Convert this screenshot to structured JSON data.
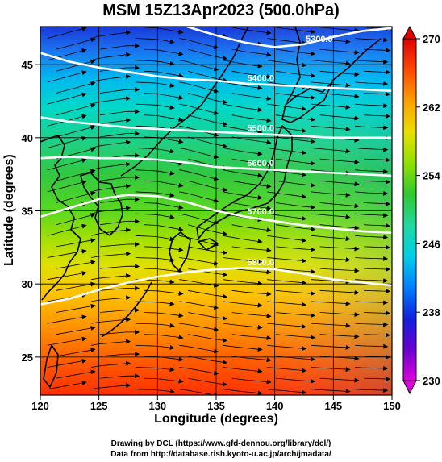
{
  "title": "MSM 15Z13Apr2023 (500.0hPa)",
  "map": {
    "lon_range": [
      120,
      150
    ],
    "lat_range": [
      22.4,
      47.6
    ],
    "x_ticks": [
      "120",
      "125",
      "130",
      "135",
      "140",
      "145",
      "150"
    ],
    "x_tick_values": [
      120,
      125,
      130,
      135,
      140,
      145,
      150
    ],
    "y_ticks": [
      "25",
      "30",
      "35",
      "40",
      "45"
    ],
    "y_tick_values": [
      25,
      30,
      35,
      40,
      45
    ],
    "xlabel": "Longitude (degrees)",
    "ylabel": "Latitude  (degrees)",
    "grid": true,
    "fill_field": "temperature",
    "contours": [
      {
        "label": "5300.0",
        "points": [
          [
            132.5,
            47.6
          ],
          [
            135,
            47.0
          ],
          [
            137.5,
            46.5
          ],
          [
            140,
            46.2
          ],
          [
            142.5,
            46.4
          ],
          [
            145,
            46.9
          ],
          [
            147.5,
            47.3
          ],
          [
            150,
            47.5
          ]
        ]
      },
      {
        "label": "5400.0",
        "points": [
          [
            120,
            45.8
          ],
          [
            122.5,
            45.2
          ],
          [
            125,
            44.8
          ],
          [
            127.5,
            44.5
          ],
          [
            130,
            44.2
          ],
          [
            132.5,
            44.0
          ],
          [
            135,
            43.9
          ],
          [
            137.5,
            43.7
          ],
          [
            140,
            43.6
          ],
          [
            142.5,
            43.5
          ],
          [
            145,
            43.4
          ],
          [
            147.5,
            43.3
          ],
          [
            150,
            43.2
          ]
        ]
      },
      {
        "label": "5500.0",
        "points": [
          [
            120,
            41.4
          ],
          [
            122.5,
            41.1
          ],
          [
            125,
            40.9
          ],
          [
            127.5,
            40.7
          ],
          [
            130,
            40.6
          ],
          [
            132.5,
            40.5
          ],
          [
            135,
            40.4
          ],
          [
            137.5,
            40.3
          ],
          [
            140,
            40.2
          ],
          [
            142.5,
            40.1
          ],
          [
            145,
            40.0
          ],
          [
            147.5,
            40.0
          ],
          [
            150,
            40.0
          ]
        ]
      },
      {
        "label": "5600.0",
        "points": [
          [
            120,
            38.6
          ],
          [
            122.5,
            38.7
          ],
          [
            125,
            38.6
          ],
          [
            127.5,
            38.6
          ],
          [
            130,
            38.5
          ],
          [
            132.5,
            38.3
          ],
          [
            135,
            38.0
          ],
          [
            137.5,
            37.9
          ],
          [
            140,
            37.8
          ],
          [
            142.5,
            37.7
          ],
          [
            145,
            37.6
          ],
          [
            147.5,
            37.5
          ],
          [
            150,
            37.4
          ]
        ]
      },
      {
        "label": "5700.0",
        "points": [
          [
            120,
            34.6
          ],
          [
            122.5,
            35.2
          ],
          [
            125,
            35.8
          ],
          [
            127.5,
            36.1
          ],
          [
            130,
            36.0
          ],
          [
            132.5,
            35.6
          ],
          [
            135,
            35.0
          ],
          [
            137.5,
            34.6
          ],
          [
            140,
            34.3
          ],
          [
            142.5,
            34.0
          ],
          [
            145,
            33.8
          ],
          [
            147.5,
            33.6
          ],
          [
            150,
            33.5
          ]
        ]
      },
      {
        "label": "5800.0",
        "points": [
          [
            120,
            28.6
          ],
          [
            122.5,
            29.0
          ],
          [
            125,
            29.6
          ],
          [
            127.5,
            30.1
          ],
          [
            130,
            30.5
          ],
          [
            132.5,
            30.8
          ],
          [
            135,
            31.0
          ],
          [
            137.5,
            31.1
          ],
          [
            140,
            31.0
          ],
          [
            142.5,
            30.7
          ],
          [
            145,
            30.3
          ],
          [
            147.5,
            30.1
          ],
          [
            150,
            29.9
          ]
        ]
      }
    ]
  },
  "colorbar": {
    "ticks": [
      "270",
      "262",
      "254",
      "246",
      "238",
      "230"
    ],
    "tick_values": [
      270,
      262,
      254,
      246,
      238,
      230
    ],
    "range": [
      230,
      270
    ],
    "colors": [
      "#e000e0",
      "#6a00d0",
      "#1020e0",
      "#0080ff",
      "#00d0e8",
      "#20d8a0",
      "#30c830",
      "#90e000",
      "#e8e000",
      "#ffa000",
      "#ff4800",
      "#e00000"
    ]
  },
  "credit_line1": "Drawing by DCL (https://www.gfd-dennou.org/library/dcl/)",
  "credit_line2": "Data from http://database.rish.kyoto-u.ac.jp/arch/jmadata/"
}
